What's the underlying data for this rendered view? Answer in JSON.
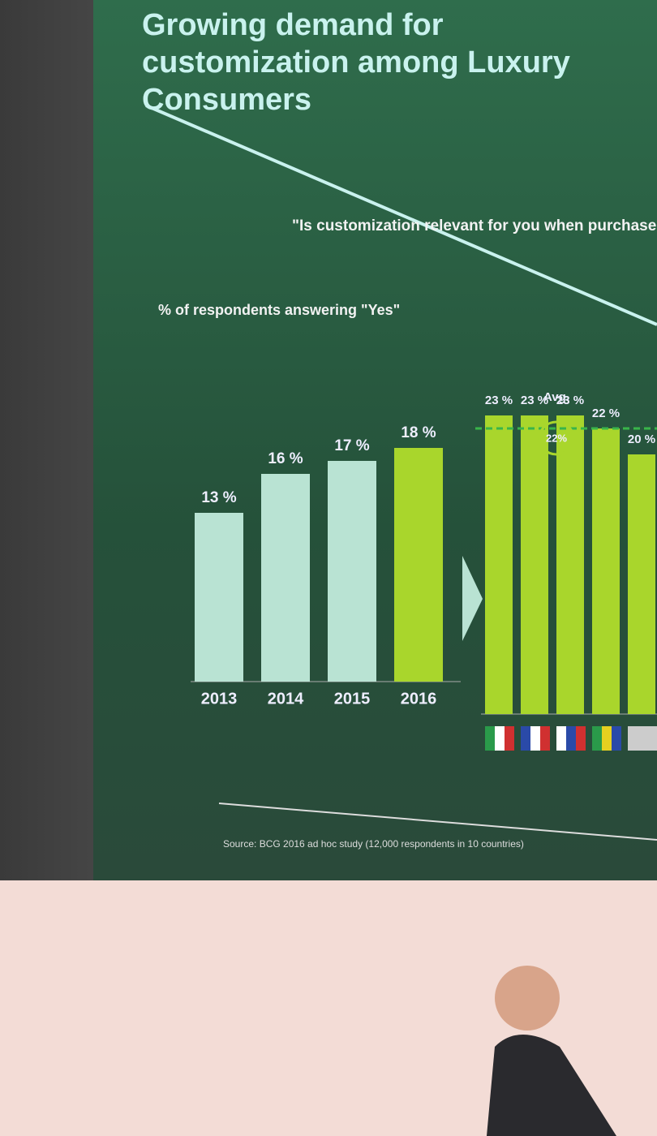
{
  "chart_data": [
    {
      "type": "bar",
      "title": "Growing demand for customization among Luxury Consumers",
      "subtitle": "\"Is customization relevant for you when purchase luxury?",
      "y_label": "% of respondents answering \"Yes\"",
      "categories": [
        "2013",
        "2014",
        "2015",
        "2016"
      ],
      "values": [
        13,
        16,
        17,
        18
      ],
      "value_labels": [
        "13 %",
        "16 %",
        "17 %",
        "18 %"
      ],
      "colors": [
        "#b9e3d3",
        "#b9e3d3",
        "#b9e3d3",
        "#a9d62c"
      ],
      "source": "Source: BCG 2016 ad hoc study (12,000 respondents in 10 countries)"
    },
    {
      "type": "bar",
      "categories": [
        null,
        null,
        null,
        null,
        null
      ],
      "values": [
        23,
        23,
        23,
        22,
        20
      ],
      "value_labels": [
        "23 %",
        "23 %",
        "23 %",
        "22 %",
        "20 %"
      ],
      "color": "#a9d62c",
      "avg": {
        "label": "Avg.",
        "value": 22,
        "value_label": "22%"
      }
    }
  ]
}
